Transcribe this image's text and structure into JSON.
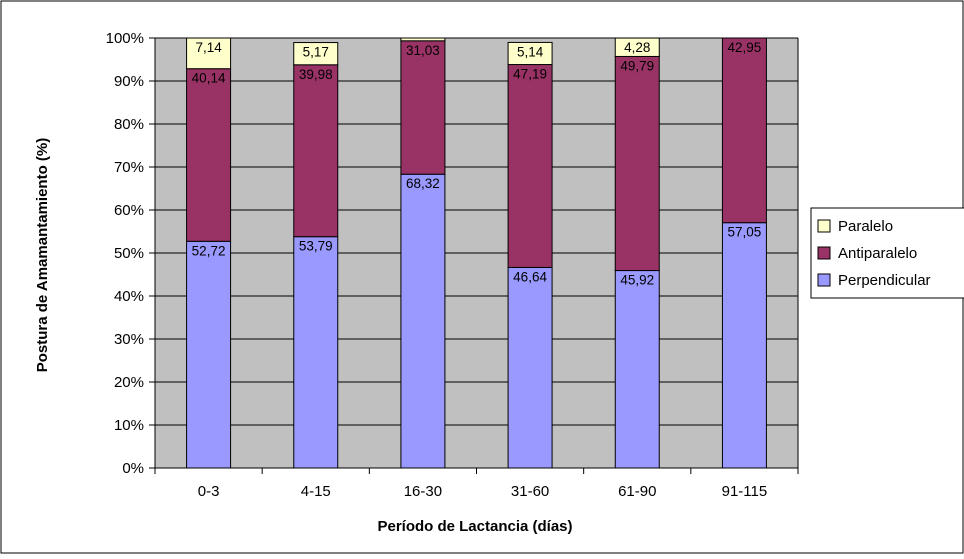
{
  "chart_data": {
    "type": "bar",
    "stacked": true,
    "percent": true,
    "xlabel": "Período de Lactancia (días)",
    "ylabel": "Postura de Amamantamiento (%)",
    "categories": [
      "0-3",
      "4-15",
      "16-30",
      "31-60",
      "61-90",
      "91-115"
    ],
    "yticks": [
      "0%",
      "10%",
      "20%",
      "30%",
      "40%",
      "50%",
      "60%",
      "70%",
      "80%",
      "90%",
      "100%"
    ],
    "ylim": [
      0,
      100
    ],
    "grid": true,
    "legend_position": "right",
    "series": [
      {
        "name": "Perpendicular",
        "color": "#9999ff",
        "values": [
          52.72,
          53.79,
          68.32,
          46.64,
          45.92,
          57.05
        ],
        "labels": [
          "52,72",
          "53,79",
          "68,32",
          "46,64",
          "45,92",
          "57,05"
        ]
      },
      {
        "name": "Antiparalelo",
        "color": "#993366",
        "values": [
          40.14,
          39.98,
          31.03,
          47.19,
          49.79,
          42.95
        ],
        "labels": [
          "40,14",
          "39,98",
          "31,03",
          "47,19",
          "49,79",
          "42,95"
        ]
      },
      {
        "name": "Paralelo",
        "color": "#ffffcc",
        "values": [
          7.14,
          5.17,
          0.65,
          5.14,
          4.28,
          0
        ],
        "labels": [
          "7,14",
          "5,17",
          "",
          "5,14",
          "4,28",
          ""
        ]
      }
    ],
    "legend_order": [
      "Paralelo",
      "Antiparalelo",
      "Perpendicular"
    ],
    "plot_background": "#c0c0c0"
  }
}
